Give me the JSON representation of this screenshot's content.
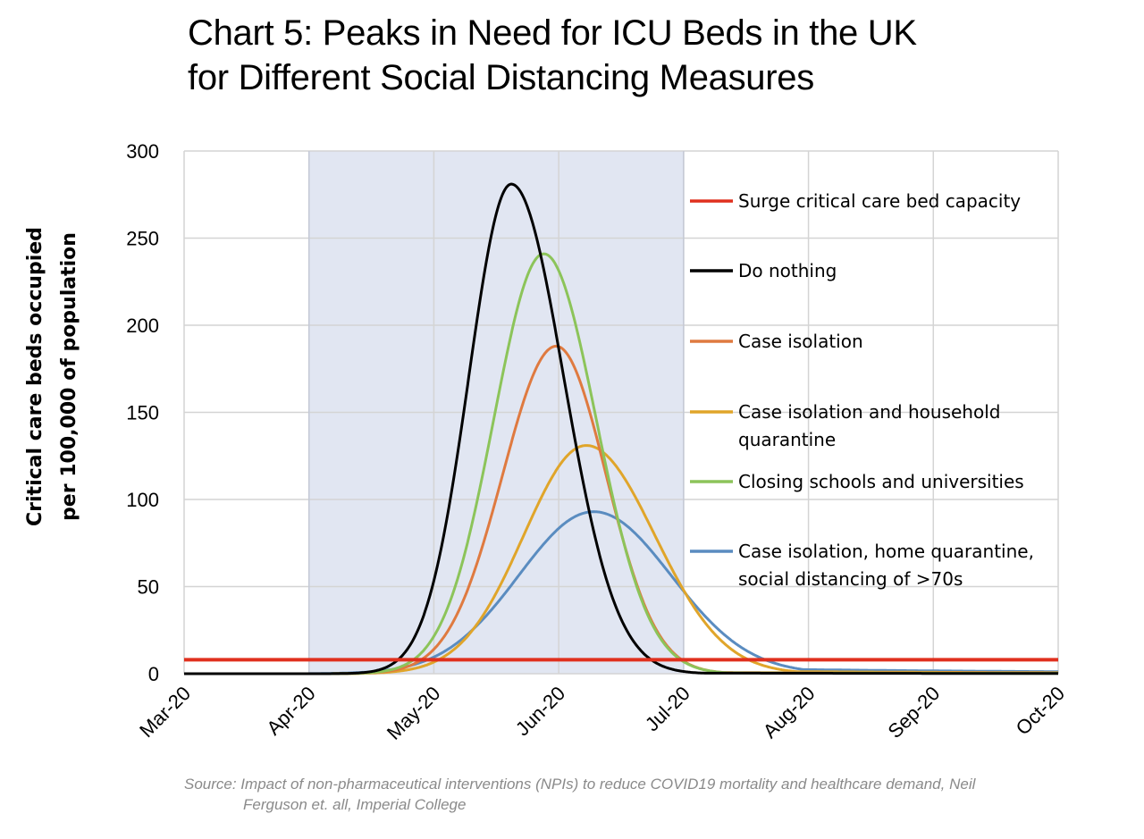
{
  "title": {
    "line1": "Chart 5: Peaks in Need for ICU Beds in the UK",
    "line2": "for Different Social Distancing Measures"
  },
  "source": {
    "line1": "Source: Impact of non-pharmaceutical interventions (NPIs) to reduce COVID19 mortality and healthcare demand, Neil",
    "line2": "Ferguson et. all, Imperial College"
  },
  "chart_data": {
    "type": "line",
    "ylabel": [
      "Critical care beds occupied",
      "per 100,000 of population"
    ],
    "xlabel": "",
    "ylim": [
      0,
      300
    ],
    "yticks": [
      "0",
      "50",
      "100",
      "150",
      "200",
      "250",
      "300"
    ],
    "xticks": [
      "Mar-20",
      "Apr-20",
      "May-20",
      "Jun-20",
      "Jul-20",
      "Aug-20",
      "Sep-20",
      "Oct-20"
    ],
    "x_unit": "months since Mar-20",
    "shaded_period": {
      "from": "Apr-20",
      "to": "Jul-20",
      "color": "#e1e6f2"
    },
    "grid": true,
    "legend_position": "right-inside",
    "capacity_line": {
      "name": "Surge critical care bed capacity",
      "value": 8,
      "color": "#e0301e"
    },
    "series": [
      {
        "name": "Do nothing",
        "color": "#000000",
        "peak": 281,
        "peak_x": 2.62,
        "sigma_left": 0.34,
        "sigma_right": 0.42,
        "start": 0.85,
        "tail": 0.4
      },
      {
        "name": "Case isolation",
        "color": "#df7a40",
        "peak": 188,
        "peak_x": 2.98,
        "sigma_left": 0.43,
        "sigma_right": 0.4,
        "start": 0.9,
        "tail": 0.8
      },
      {
        "name": "Case isolation and household quarantine",
        "color": "#e0a52a",
        "peak": 131,
        "peak_x": 3.22,
        "sigma_left": 0.5,
        "sigma_right": 0.55,
        "start": 0.9,
        "tail": 1.5
      },
      {
        "name": "Closing schools and universities",
        "color": "#8cc45a",
        "peak": 241,
        "peak_x": 2.88,
        "sigma_left": 0.4,
        "sigma_right": 0.42,
        "start": 0.85,
        "tail": 0.6
      },
      {
        "name": "Case isolation, home quarantine, social distancing of >70s",
        "color": "#5a8cc0",
        "peak": 93,
        "peak_x": 3.28,
        "sigma_left": 0.6,
        "sigma_right": 0.62,
        "start": 0.85,
        "tail": 3.0
      }
    ]
  }
}
